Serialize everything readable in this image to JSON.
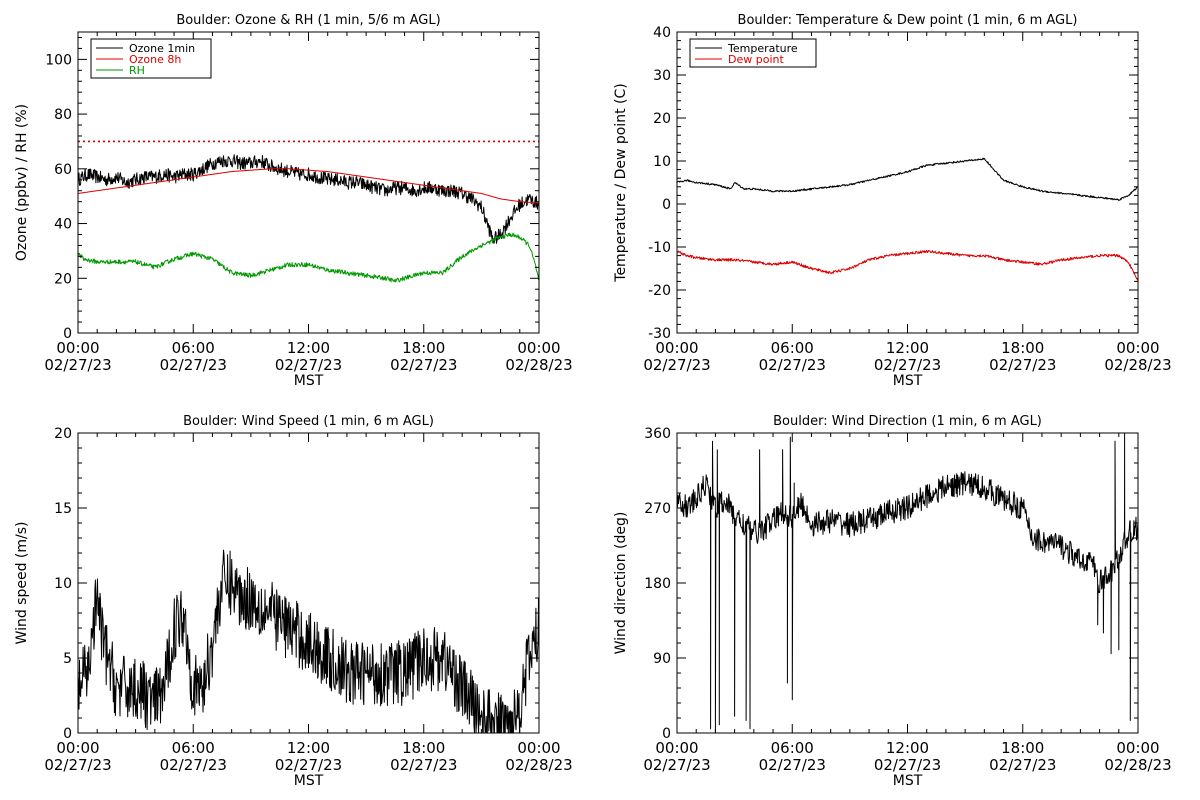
{
  "chart_data": [
    {
      "type": "line",
      "title": "Boulder: Ozone & RH (1 min, 5/6 m AGL)",
      "ylabel": "Ozone (ppbv) / RH (%)",
      "xlabel": "MST",
      "xticks": [
        "00:00",
        "06:00",
        "12:00",
        "18:00",
        "00:00"
      ],
      "xdates": [
        "02/27/23",
        "02/27/23",
        "02/27/23",
        "02/27/23",
        "02/28/23"
      ],
      "xlim": [
        0,
        24
      ],
      "ylim": [
        0,
        110
      ],
      "yticks": [
        0,
        20,
        40,
        60,
        80,
        100
      ],
      "legend": "top-left",
      "reference_line": {
        "y": 70,
        "color": "#cc0000",
        "style": "dotted"
      },
      "series": [
        {
          "name": "Ozone 1min",
          "color": "#000000",
          "x": [
            0,
            0.5,
            1,
            1.5,
            2,
            2.5,
            3,
            3.5,
            4,
            4.5,
            5,
            5.5,
            6,
            6.5,
            7,
            7.5,
            8,
            8.5,
            9,
            9.5,
            10,
            10.5,
            11,
            11.5,
            12,
            12.5,
            13,
            13.5,
            14,
            14.5,
            15,
            15.5,
            16,
            16.5,
            17,
            17.5,
            18,
            18.5,
            19,
            19.5,
            20,
            20.5,
            21,
            21.3,
            21.6,
            22,
            22.5,
            23,
            23.5,
            24
          ],
          "y": [
            56,
            58,
            57,
            56,
            57,
            55,
            56,
            57,
            57,
            58,
            57,
            58,
            58,
            60,
            62,
            63,
            63,
            62,
            62,
            63,
            61,
            60,
            59,
            58,
            58,
            57,
            56,
            56,
            55,
            55,
            54,
            53,
            52,
            53,
            53,
            52,
            53,
            53,
            52,
            52,
            51,
            49,
            46,
            40,
            34,
            36,
            42,
            47,
            49,
            47
          ],
          "noise": 2.5
        },
        {
          "name": "Ozone 8h",
          "color": "#dd0000",
          "x": [
            0,
            1,
            2,
            3,
            4,
            5,
            6,
            7,
            8,
            9,
            10,
            11,
            12,
            13,
            14,
            15,
            16,
            17,
            18,
            19,
            20,
            21,
            22,
            23,
            24
          ],
          "y": [
            51,
            52,
            53,
            54,
            55,
            56,
            57,
            58,
            59,
            59.5,
            60,
            60,
            59.5,
            59,
            58,
            57,
            56,
            55,
            54,
            53,
            52,
            51,
            49,
            48,
            47.5
          ],
          "noise": 0
        },
        {
          "name": "RH",
          "color": "#009900",
          "x": [
            0,
            0.3,
            1,
            2,
            3,
            3.5,
            4,
            5,
            6,
            7,
            8,
            9,
            10,
            11,
            12,
            13,
            14,
            15,
            16,
            16.5,
            17,
            18,
            19,
            20,
            21,
            22,
            22.5,
            23,
            23.5,
            23.8,
            24
          ],
          "y": [
            29,
            27,
            26,
            26,
            26,
            25,
            24,
            27,
            29,
            27,
            22,
            21,
            23,
            25,
            25,
            23,
            22,
            21,
            20,
            19,
            20,
            22,
            22,
            28,
            32,
            35,
            36,
            35,
            32,
            25,
            19
          ],
          "noise": 0.8
        }
      ]
    },
    {
      "type": "line",
      "title": "Boulder: Temperature & Dew point (1 min, 6 m AGL)",
      "ylabel": "Temperature / Dew point (C)",
      "xlabel": "MST",
      "xticks": [
        "00:00",
        "06:00",
        "12:00",
        "18:00",
        "00:00"
      ],
      "xdates": [
        "02/27/23",
        "02/27/23",
        "02/27/23",
        "02/27/23",
        "02/28/23"
      ],
      "xlim": [
        0,
        24
      ],
      "ylim": [
        -30,
        40
      ],
      "yticks": [
        -30,
        -20,
        -10,
        0,
        10,
        20,
        30,
        40
      ],
      "legend": "top-left",
      "series": [
        {
          "name": "Temperature",
          "color": "#000000",
          "x": [
            0,
            0.5,
            1,
            2,
            2.8,
            3,
            3.5,
            4,
            5,
            6,
            7,
            8,
            9,
            10,
            11,
            12,
            13,
            14,
            15,
            16,
            16.5,
            17,
            18,
            19,
            20,
            21,
            22,
            23,
            23.5,
            24
          ],
          "y": [
            5,
            5.5,
            5,
            4.5,
            3.5,
            5,
            3.5,
            3.5,
            3,
            3,
            3.5,
            4,
            4.5,
            5.5,
            6.5,
            7.5,
            9,
            9.5,
            10,
            10.5,
            8,
            5.5,
            4,
            3,
            2.5,
            2,
            1.5,
            1,
            2,
            4
          ],
          "noise": 0.2
        },
        {
          "name": "Dew point",
          "color": "#dd0000",
          "x": [
            0,
            0.5,
            1,
            2,
            3,
            4,
            5,
            6,
            7,
            8,
            9,
            10,
            11,
            12,
            13,
            14,
            15,
            16,
            17,
            18,
            19,
            20,
            21,
            22,
            23,
            23.5,
            24
          ],
          "y": [
            -11,
            -12,
            -12.5,
            -13,
            -13,
            -13.5,
            -14,
            -13.5,
            -15,
            -16,
            -15,
            -13,
            -12,
            -11.5,
            -11,
            -11.5,
            -12,
            -12,
            -13,
            -13.5,
            -14,
            -13,
            -12.5,
            -12,
            -12,
            -13.5,
            -18
          ],
          "noise": 0.3
        }
      ]
    },
    {
      "type": "line",
      "title": "Boulder: Wind Speed (1 min, 6 m AGL)",
      "ylabel": "Wind speed (m/s)",
      "xlabel": "MST",
      "xticks": [
        "00:00",
        "06:00",
        "12:00",
        "18:00",
        "00:00"
      ],
      "xdates": [
        "02/27/23",
        "02/27/23",
        "02/27/23",
        "02/27/23",
        "02/28/23"
      ],
      "xlim": [
        0,
        24
      ],
      "ylim": [
        0,
        20
      ],
      "yticks": [
        0,
        5,
        10,
        15,
        20
      ],
      "series": [
        {
          "name": "Wind speed",
          "color": "#000000",
          "x": [
            0,
            0.5,
            1,
            1.3,
            2,
            3,
            4,
            4.5,
            5,
            5.5,
            6,
            6.5,
            7,
            7.5,
            8,
            8.5,
            9,
            10,
            11,
            12,
            13,
            14,
            15,
            16,
            17,
            18,
            19,
            20,
            21,
            22,
            22.5,
            23,
            23.5,
            24
          ],
          "y": [
            3,
            4,
            9,
            6,
            3,
            3,
            2,
            3,
            7,
            8,
            3,
            3,
            6,
            10,
            10,
            9,
            9,
            8,
            7,
            6,
            5,
            4,
            4,
            4,
            4,
            5,
            5,
            3,
            1,
            0.5,
            0.5,
            2,
            5,
            7
          ],
          "noise": 2.2
        }
      ]
    },
    {
      "type": "line",
      "title": "Boulder: Wind Direction (1 min, 6 m AGL)",
      "ylabel": "Wind direction (deg)",
      "xlabel": "MST",
      "xticks": [
        "00:00",
        "06:00",
        "12:00",
        "18:00",
        "00:00"
      ],
      "xdates": [
        "02/27/23",
        "02/27/23",
        "02/27/23",
        "02/27/23",
        "02/28/23"
      ],
      "xlim": [
        0,
        24
      ],
      "ylim": [
        0,
        360
      ],
      "yticks": [
        0,
        90,
        180,
        270,
        360
      ],
      "series": [
        {
          "name": "Wind direction",
          "color": "#000000",
          "x": [
            0,
            0.5,
            1,
            1.5,
            2,
            2.5,
            3,
            3.5,
            4,
            4.5,
            5,
            5.5,
            6,
            6.5,
            7,
            8,
            9,
            10,
            11,
            12,
            13,
            14,
            15,
            16,
            17,
            18,
            18.5,
            19,
            20,
            21,
            21.5,
            22,
            22.5,
            23,
            23.5,
            24
          ],
          "y": [
            285,
            270,
            280,
            300,
            270,
            280,
            260,
            250,
            240,
            245,
            255,
            265,
            260,
            275,
            250,
            255,
            250,
            255,
            265,
            270,
            285,
            295,
            300,
            295,
            280,
            270,
            235,
            230,
            225,
            205,
            210,
            180,
            190,
            210,
            240,
            245
          ],
          "noise": 15,
          "spikes": [
            {
              "x": 1.75,
              "y": 5
            },
            {
              "x": 1.85,
              "y": 350
            },
            {
              "x": 2.0,
              "y": 0
            },
            {
              "x": 2.1,
              "y": 340
            },
            {
              "x": 2.2,
              "y": 10
            },
            {
              "x": 3.0,
              "y": 20
            },
            {
              "x": 3.6,
              "y": 15
            },
            {
              "x": 3.8,
              "y": 5
            },
            {
              "x": 4.3,
              "y": 340
            },
            {
              "x": 5.5,
              "y": 340
            },
            {
              "x": 5.75,
              "y": 60
            },
            {
              "x": 5.9,
              "y": 355
            },
            {
              "x": 6.0,
              "y": 40
            },
            {
              "x": 6.1,
              "y": 300
            },
            {
              "x": 21.9,
              "y": 130
            },
            {
              "x": 22.2,
              "y": 120
            },
            {
              "x": 22.6,
              "y": 95
            },
            {
              "x": 22.8,
              "y": 350
            },
            {
              "x": 23.0,
              "y": 100
            },
            {
              "x": 23.3,
              "y": 360
            },
            {
              "x": 23.6,
              "y": 15
            }
          ]
        }
      ]
    }
  ]
}
